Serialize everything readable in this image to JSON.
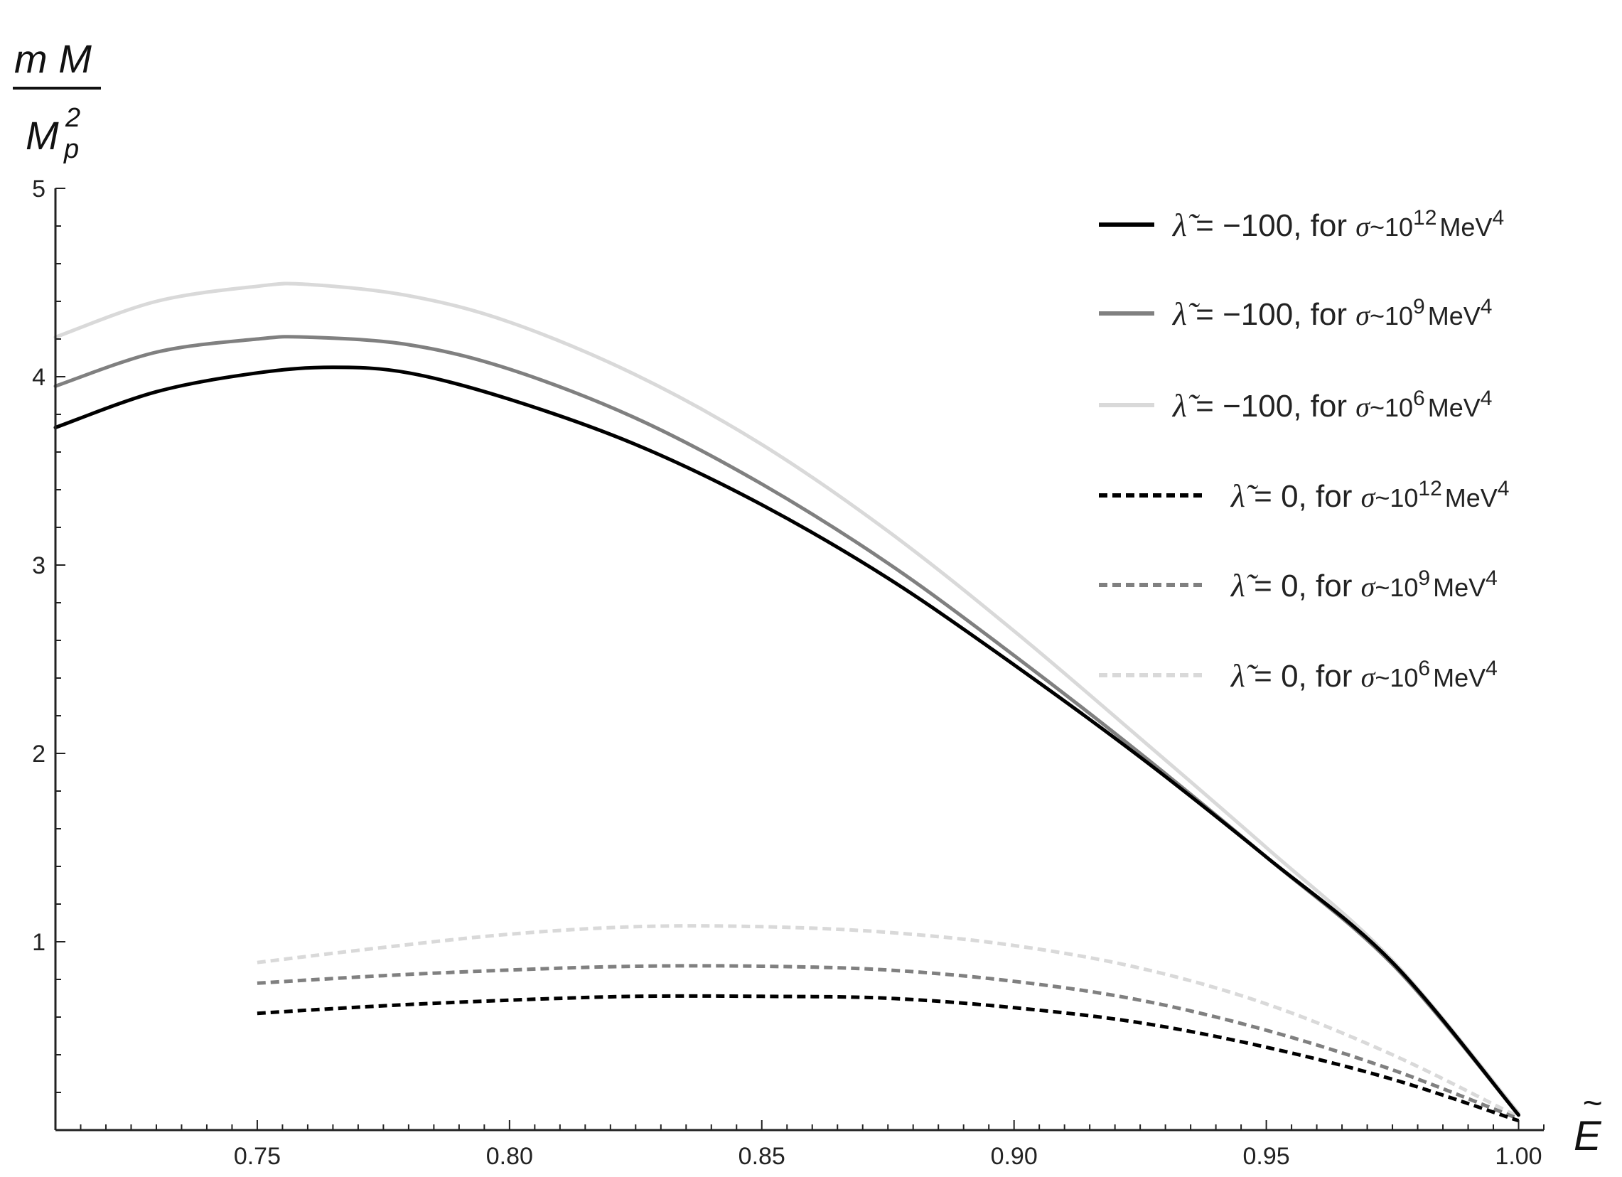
{
  "chart_data": {
    "type": "line",
    "xlabel": "E",
    "ylabel": {
      "numerator": "m M",
      "denominator_base": "M",
      "denominator_sub": "p",
      "denominator_sup": "2"
    },
    "xlim": [
      0.71,
      1.005
    ],
    "ylim": [
      0,
      5
    ],
    "x_ticks": [
      "0.75",
      "0.80",
      "0.85",
      "0.90",
      "0.95",
      "1.00"
    ],
    "y_ticks": [
      "1",
      "2",
      "3",
      "4",
      "5"
    ],
    "grid": false,
    "legend_position": "top-right",
    "series": [
      {
        "name": "λ̃ = −100, for σ~10^12 MeV^4",
        "legend": {
          "lambda": "λ̃",
          "lambda_value": " = −100, for ",
          "sigma": "σ",
          "tilde": "~10",
          "exp": "12",
          "unit": "MeV",
          "unit_exp": "4"
        },
        "color": "#000000",
        "dashed": false,
        "x": [
          0.71,
          0.73,
          0.75,
          0.765,
          0.78,
          0.8,
          0.825,
          0.85,
          0.875,
          0.9,
          0.925,
          0.95,
          0.975,
          1.0
        ],
        "y": [
          3.73,
          3.92,
          4.02,
          4.05,
          4.02,
          3.88,
          3.64,
          3.32,
          2.93,
          2.47,
          1.98,
          1.45,
          0.89,
          0.08
        ]
      },
      {
        "name": "λ̃ = −100, for σ~10^9 MeV^4",
        "legend": {
          "lambda": "λ̃",
          "lambda_value": " = −100, for ",
          "sigma": "σ",
          "tilde": "~10",
          "exp": "9",
          "unit": "MeV",
          "unit_exp": "4"
        },
        "color": "#808080",
        "dashed": false,
        "x": [
          0.71,
          0.73,
          0.75,
          0.76,
          0.78,
          0.8,
          0.825,
          0.85,
          0.875,
          0.9,
          0.925,
          0.95,
          0.975,
          1.0
        ],
        "y": [
          3.95,
          4.13,
          4.2,
          4.21,
          4.17,
          4.04,
          3.78,
          3.43,
          3.01,
          2.52,
          2.0,
          1.45,
          0.88,
          0.08
        ]
      },
      {
        "name": "λ̃ = −100, for σ~10^6 MeV^4",
        "legend": {
          "lambda": "λ̃",
          "lambda_value": " = −100, for ",
          "sigma": "σ",
          "tilde": "~10",
          "exp": "6",
          "unit": "MeV",
          "unit_exp": "4"
        },
        "color": "#d9d9d9",
        "dashed": false,
        "x": [
          0.71,
          0.73,
          0.75,
          0.76,
          0.78,
          0.8,
          0.825,
          0.85,
          0.875,
          0.9,
          0.925,
          0.95,
          0.975,
          1.0
        ],
        "y": [
          4.21,
          4.4,
          4.48,
          4.49,
          4.43,
          4.29,
          4.01,
          3.64,
          3.18,
          2.65,
          2.08,
          1.5,
          0.9,
          0.09
        ]
      },
      {
        "name": "λ̃ = 0, for σ~10^12 MeV^4",
        "legend": {
          "lambda": "λ̃",
          "lambda_value": " = 0, for ",
          "sigma": "σ",
          "tilde": "~10",
          "exp": "12",
          "unit": "MeV",
          "unit_exp": "4"
        },
        "color": "#000000",
        "dashed": true,
        "x": [
          0.75,
          0.775,
          0.8,
          0.825,
          0.85,
          0.875,
          0.9,
          0.925,
          0.95,
          0.975,
          1.0
        ],
        "y": [
          0.62,
          0.66,
          0.69,
          0.71,
          0.71,
          0.7,
          0.65,
          0.57,
          0.44,
          0.27,
          0.05
        ]
      },
      {
        "name": "λ̃ = 0, for σ~10^9 MeV^4",
        "legend": {
          "lambda": "λ̃",
          "lambda_value": " = 0, for ",
          "sigma": "σ",
          "tilde": "~10",
          "exp": "9",
          "unit": "MeV",
          "unit_exp": "4"
        },
        "color": "#808080",
        "dashed": true,
        "x": [
          0.75,
          0.775,
          0.8,
          0.825,
          0.85,
          0.875,
          0.9,
          0.925,
          0.95,
          0.975,
          1.0
        ],
        "y": [
          0.78,
          0.82,
          0.85,
          0.87,
          0.87,
          0.85,
          0.79,
          0.69,
          0.53,
          0.32,
          0.06
        ]
      },
      {
        "name": "λ̃ = 0, for σ~10^6 MeV^4",
        "legend": {
          "lambda": "λ̃",
          "lambda_value": " = 0, for ",
          "sigma": "σ",
          "tilde": "~10",
          "exp": "6",
          "unit": "MeV",
          "unit_exp": "4"
        },
        "color": "#d9d9d9",
        "dashed": true,
        "x": [
          0.75,
          0.775,
          0.8,
          0.825,
          0.85,
          0.875,
          0.9,
          0.925,
          0.95,
          0.975,
          1.0
        ],
        "y": [
          0.89,
          0.97,
          1.04,
          1.08,
          1.08,
          1.05,
          0.98,
          0.86,
          0.67,
          0.4,
          0.07
        ]
      }
    ]
  }
}
